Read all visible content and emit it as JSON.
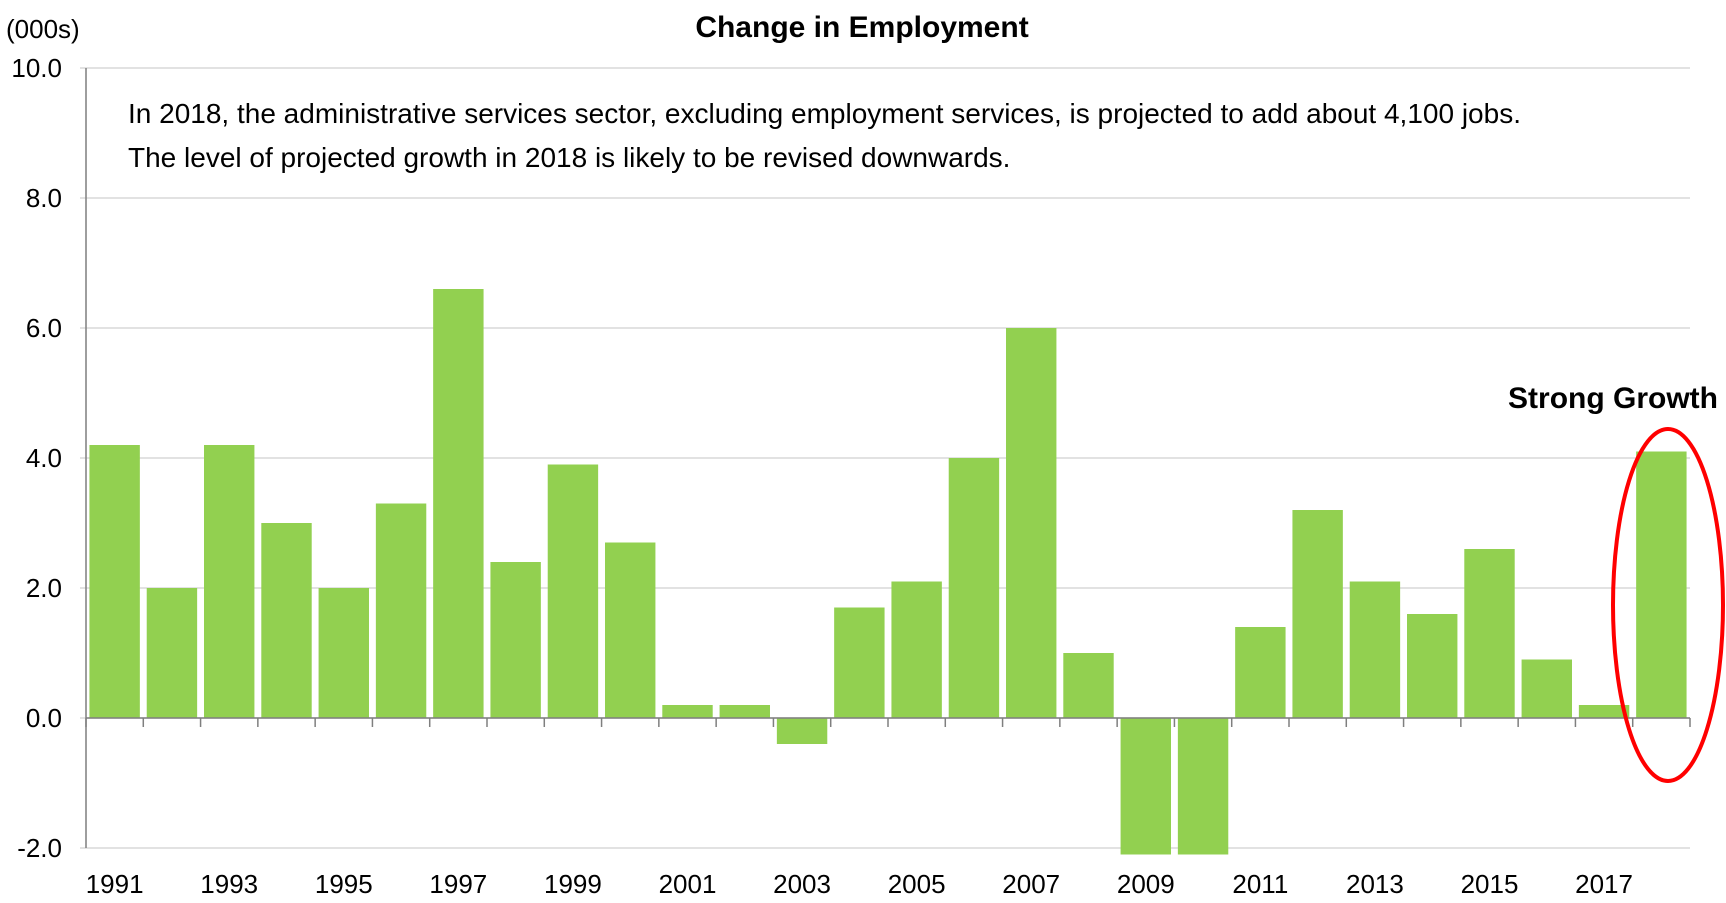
{
  "chart_data": {
    "type": "bar",
    "title": "Change in Employment",
    "ylabel": "(000s)",
    "xlabel": "",
    "ylim": [
      -2.0,
      10.0
    ],
    "ytick_labels": [
      "-2.0",
      "0.0",
      "2.0",
      "4.0",
      "6.0",
      "8.0",
      "10.0"
    ],
    "categories": [
      "1991",
      "1992",
      "1993",
      "1994",
      "1995",
      "1996",
      "1997",
      "1998",
      "1999",
      "2000",
      "2001",
      "2002",
      "2003",
      "2004",
      "2005",
      "2006",
      "2007",
      "2008",
      "2009",
      "2010",
      "2011",
      "2012",
      "2013",
      "2014",
      "2015",
      "2016",
      "2017",
      "2018"
    ],
    "xtick_labels": [
      "1991",
      "1993",
      "1995",
      "1997",
      "1999",
      "2001",
      "2003",
      "2005",
      "2007",
      "2009",
      "2011",
      "2013",
      "2015",
      "2017"
    ],
    "values": [
      4.2,
      2.0,
      4.2,
      3.0,
      2.0,
      3.3,
      6.6,
      2.4,
      3.9,
      2.7,
      0.2,
      0.2,
      -0.4,
      1.7,
      2.1,
      4.0,
      6.0,
      1.0,
      -2.1,
      -2.1,
      1.4,
      3.2,
      2.1,
      1.6,
      2.6,
      0.9,
      0.2,
      4.1
    ],
    "grid": true,
    "bar_color": "#92d050",
    "annotations": {
      "note_line1": "In 2018, the administrative services sector, excluding employment services, is projected to add about 4,100 jobs.",
      "note_line2": "The level of projected growth in 2018 is likely to be revised downwards.",
      "callout": "Strong Growth",
      "callout_color": "#ff0000"
    }
  }
}
